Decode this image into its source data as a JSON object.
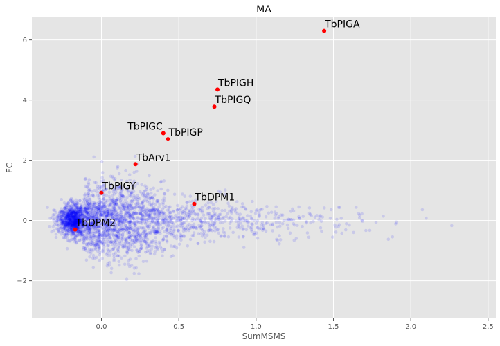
{
  "chart_data": {
    "type": "scatter",
    "title": "MA",
    "xlabel": "SumMSMS",
    "ylabel": "FC",
    "xlim": [
      -0.45,
      2.55
    ],
    "ylim": [
      -3.25,
      6.75
    ],
    "xticks": [
      0.0,
      0.5,
      1.0,
      1.5,
      2.0,
      2.5
    ],
    "xtick_labels": [
      "0.0",
      "0.5",
      "1.0",
      "1.5",
      "2.0",
      "2.5"
    ],
    "yticks": [
      -2,
      0,
      2,
      4,
      6
    ],
    "ytick_labels": [
      "−2",
      "0",
      "2",
      "4",
      "6"
    ],
    "grid": true,
    "background": "#e5e5e5",
    "background_points": {
      "description_color": "#0000ff",
      "count_estimate": 3000,
      "x_range": [
        -0.35,
        2.4
      ],
      "y_range": [
        -2.8,
        2.2
      ]
    },
    "highlighted": [
      {
        "label": "TbPIGA",
        "x": 1.44,
        "y": 6.3
      },
      {
        "label": "TbPIGH",
        "x": 0.75,
        "y": 4.35
      },
      {
        "label": "TbPIGQ",
        "x": 0.73,
        "y": 3.78
      },
      {
        "label": "TbPIGC",
        "x": 0.4,
        "y": 2.9
      },
      {
        "label": "TbPIGP",
        "x": 0.43,
        "y": 2.7
      },
      {
        "label": "TbArv1",
        "x": 0.22,
        "y": 1.87
      },
      {
        "label": "TbPIGY",
        "x": 0.0,
        "y": 0.92
      },
      {
        "label": "TbDPM1",
        "x": 0.6,
        "y": 0.55
      },
      {
        "label": "TbDPM2",
        "x": -0.17,
        "y": -0.3
      }
    ],
    "highlight_color": "#ff0000",
    "point_color": "#0000ff"
  }
}
